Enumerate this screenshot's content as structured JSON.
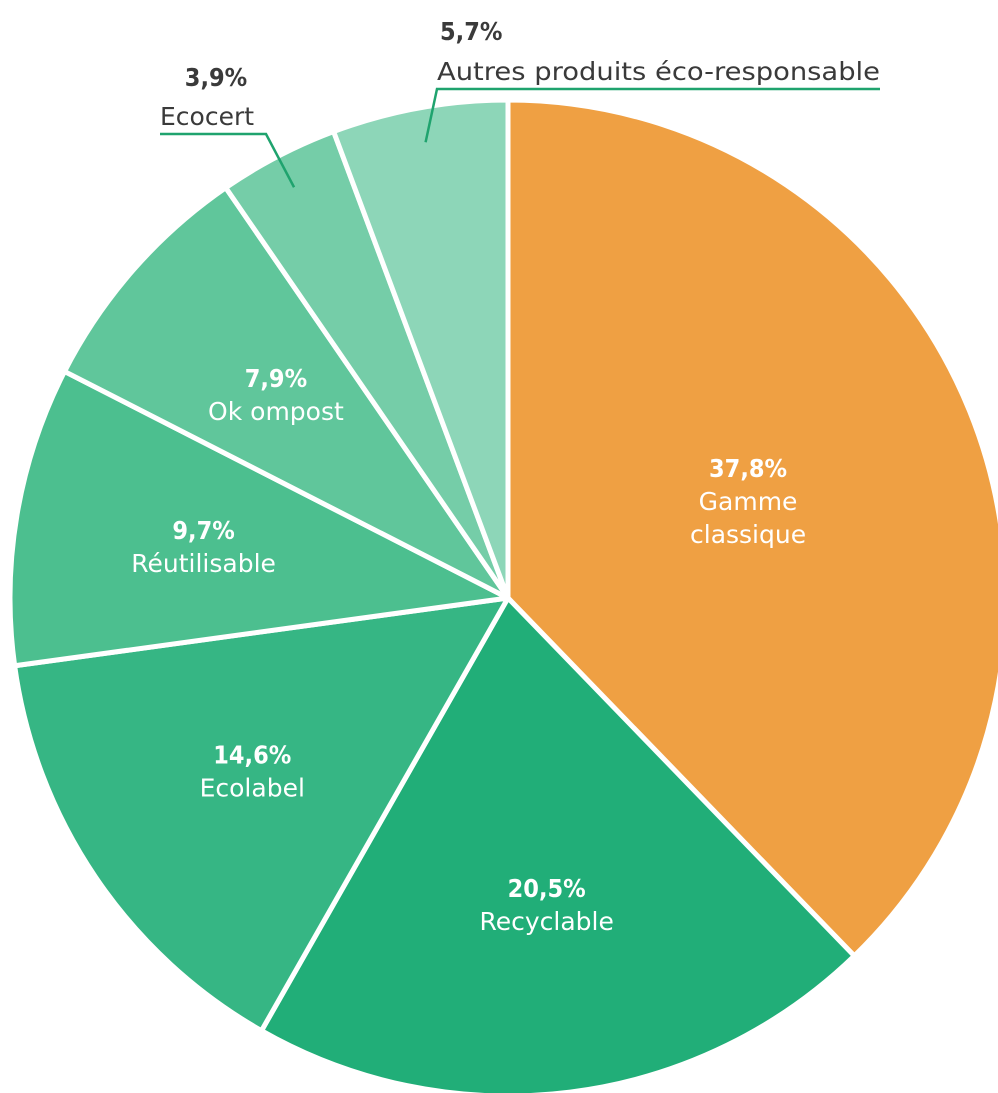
{
  "chart_data": {
    "type": "pie",
    "slices": [
      {
        "label": "Gamme classique",
        "label_lines": [
          "Gamme",
          "classique"
        ],
        "value": 37.8,
        "value_text": "37,8%",
        "color": "#EFA043",
        "label_position": "inside",
        "text_color": "#ffffff"
      },
      {
        "label": "Recyclable",
        "label_lines": [
          "Recyclable"
        ],
        "value": 20.5,
        "value_text": "20,5%",
        "color": "#21AE78",
        "label_position": "inside",
        "text_color": "#ffffff"
      },
      {
        "label": "Ecolabel",
        "label_lines": [
          "Ecolabel"
        ],
        "value": 14.6,
        "value_text": "14,6%",
        "color": "#36B684",
        "label_position": "inside",
        "text_color": "#ffffff"
      },
      {
        "label": "Réutilisable",
        "label_lines": [
          "Réutilisable"
        ],
        "value": 9.7,
        "value_text": "9,7%",
        "color": "#4CBF8F",
        "label_position": "inside",
        "text_color": "#ffffff"
      },
      {
        "label": "Ok ompost",
        "label_lines": [
          "Ok ompost"
        ],
        "value": 7.9,
        "value_text": "7,9%",
        "color": "#60C69B",
        "label_position": "inside",
        "text_color": "#ffffff"
      },
      {
        "label": "Ecocert",
        "label_lines": [
          "Ecocert"
        ],
        "value": 3.9,
        "value_text": "3,9%",
        "color": "#75CDA8",
        "label_position": "outside-left",
        "text_color": "#3a3a3a"
      },
      {
        "label": "Autres produits éco-responsable",
        "label_lines": [
          "Autres produits éco-responsable"
        ],
        "value": 5.7,
        "value_text": "5,7%",
        "color": "#8DD6B8",
        "label_position": "outside-right",
        "text_color": "#3a3a3a"
      }
    ],
    "leader_color": "#1FA36E",
    "start": "top (12 o'clock)",
    "direction": "clockwise",
    "legend": "none"
  }
}
